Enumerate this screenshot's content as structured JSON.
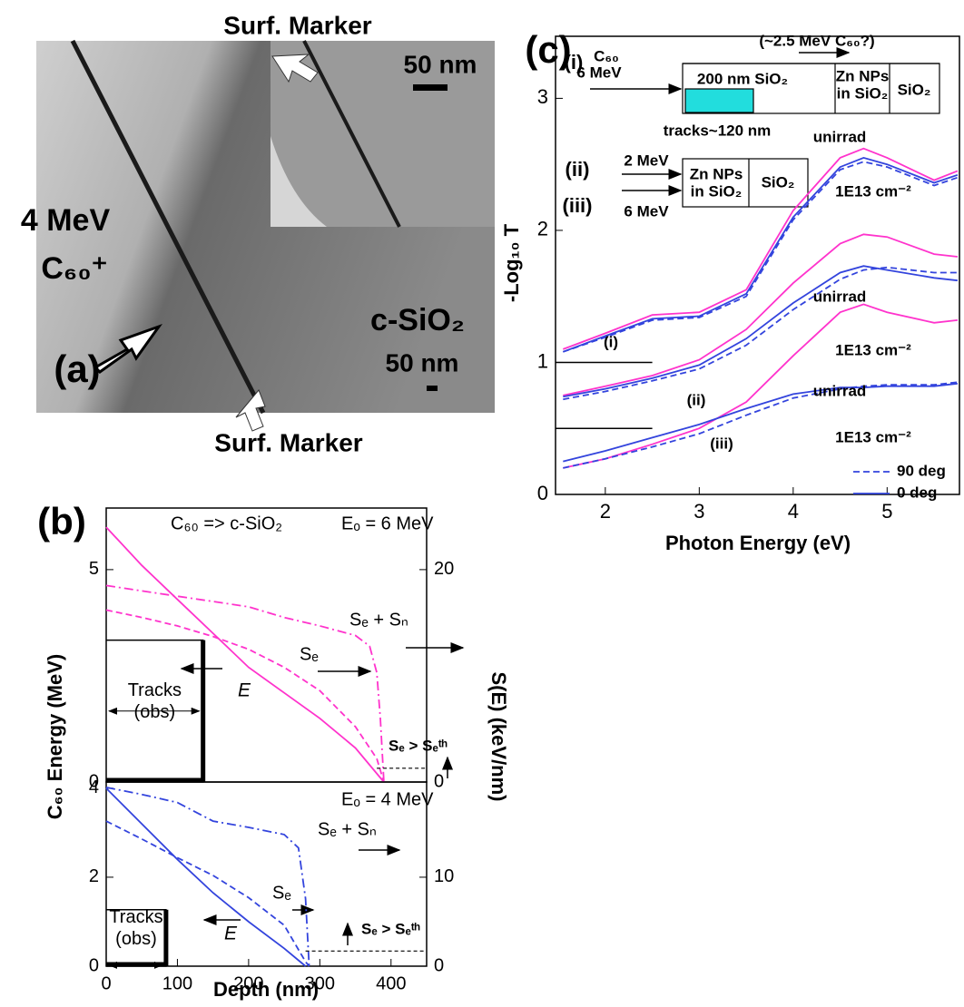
{
  "panel_a": {
    "label": "(a)",
    "beam_energy": "4 MeV",
    "ion": "C₆₀⁺",
    "substrate": "c-SiO₂",
    "marker_top": "Surf. Marker",
    "marker_bottom": "Surf. Marker",
    "scale_inset": "50 nm",
    "scale_main": "50 nm"
  },
  "chart_data": [
    {
      "type": "line",
      "panel_label": "(b)",
      "ylabel": "C₆₀ Energy  (MeV)",
      "y2label": "S(E)  (keV/nm)",
      "annotations": {
        "system": "C₆₀ => c-SiO₂",
        "energy": "Eₒ = 6 MeV",
        "se_sn": "Sₑ + Sₙ",
        "se": "Sₑ",
        "e": "E",
        "threshold": "Sₑ > Sₑᵗʰ"
      },
      "xlim": [
        0,
        450
      ],
      "ylim": [
        0,
        6.45
      ],
      "yticks": [
        0,
        5
      ],
      "y2lim": [
        0,
        25.8
      ],
      "y2ticks": [
        0,
        20
      ],
      "tracks": {
        "depth": 136,
        "height": 3.34,
        "label": [
          "Tracks",
          "(obs)"
        ]
      },
      "series": [
        {
          "color": "#ff33cc",
          "style": "solid",
          "x": [
            0,
            50,
            100,
            150,
            200,
            250,
            300,
            350,
            390
          ],
          "values": [
            6.0,
            5.1,
            4.3,
            3.5,
            2.7,
            2.1,
            1.5,
            0.8,
            0
          ]
        },
        {
          "color": "#ff33cc",
          "style": "dashdot",
          "axis": "y2",
          "x": [
            0,
            50,
            100,
            150,
            200,
            250,
            300,
            350,
            370,
            380,
            385,
            390
          ],
          "values": [
            18.5,
            18.0,
            17.5,
            17.0,
            16.5,
            15.5,
            14.7,
            13.8,
            12.8,
            10.3,
            6,
            0
          ]
        },
        {
          "color": "#ff33cc",
          "style": "dashed",
          "axis": "y2",
          "x": [
            0,
            50,
            100,
            150,
            200,
            250,
            300,
            350,
            380,
            390
          ],
          "values": [
            16.2,
            15.5,
            14.7,
            13.7,
            12.5,
            10.8,
            8.6,
            5.2,
            2.2,
            0
          ]
        },
        {
          "color": "#000000",
          "style": "thin-dashed",
          "axis": "y2",
          "x": [
            380,
            450
          ],
          "values": [
            1.3,
            1.3
          ]
        }
      ]
    },
    {
      "type": "line",
      "xlabel": "Depth  (nm)",
      "annotations": {
        "energy": "Eₒ = 4 MeV",
        "se_sn": "Sₑ + Sₙ",
        "se": "Sₑ",
        "e": "E",
        "threshold": "Sₑ > Sₑᵗʰ"
      },
      "xlim": [
        0,
        450
      ],
      "xticks": [
        0,
        100,
        200,
        300,
        400
      ],
      "ylim": [
        0,
        4.14
      ],
      "yticks": [
        0,
        2,
        4
      ],
      "y2lim": [
        0,
        20.7
      ],
      "y2ticks": [
        0,
        10
      ],
      "tracks": {
        "depth": 84,
        "height": 1.27,
        "label": [
          "Tracks",
          "(obs)"
        ]
      },
      "series": [
        {
          "color": "#3344dd",
          "style": "solid",
          "x": [
            0,
            50,
            100,
            150,
            200,
            250,
            280
          ],
          "values": [
            4.0,
            3.2,
            2.4,
            1.65,
            1.0,
            0.4,
            0
          ]
        },
        {
          "color": "#3344dd",
          "style": "dashdot",
          "axis": "y2",
          "x": [
            0,
            50,
            100,
            150,
            200,
            250,
            270,
            280,
            285
          ],
          "values": [
            20.1,
            19.3,
            18.4,
            16.3,
            15.6,
            14.8,
            13.3,
            7.6,
            0
          ]
        },
        {
          "color": "#3344dd",
          "style": "dashed",
          "axis": "y2",
          "x": [
            0,
            50,
            100,
            150,
            200,
            250,
            280,
            285
          ],
          "values": [
            16.3,
            14.3,
            12.2,
            10.2,
            7.7,
            4.6,
            0.5,
            0
          ]
        },
        {
          "color": "#000000",
          "style": "thin-dashed",
          "axis": "y2",
          "x": [
            280,
            450
          ],
          "values": [
            1.7,
            1.7
          ]
        }
      ]
    },
    {
      "type": "line",
      "panel_label": "(c)",
      "xlabel": "Photon Energy (eV)",
      "ylabel": "-Log₁₀ T",
      "xlim": [
        1.47,
        5.77
      ],
      "xticks": [
        2,
        3,
        4,
        5
      ],
      "ylim": [
        0,
        3.47
      ],
      "yticks": [
        0,
        1,
        2,
        3
      ],
      "baselines": [
        1,
        0.5
      ],
      "baseline_end": 2.5,
      "curve_labels": [
        "(i)",
        "(ii)",
        "(iii)"
      ],
      "dose_labels": [
        "1E13 cm⁻²",
        "1E13 cm⁻²",
        "1E13 cm⁻²"
      ],
      "x": [
        1.55,
        2,
        2.5,
        3,
        3.5,
        4,
        4.5,
        4.75,
        5,
        5.5,
        5.75
      ],
      "series": [
        {
          "name": "unirrad",
          "color": "#ff33cc",
          "style": "solid",
          "values": [
            1.1,
            1.22,
            1.36,
            1.38,
            1.55,
            2.15,
            2.55,
            2.62,
            2.55,
            2.38,
            2.45
          ]
        },
        {
          "name": "0 deg",
          "color": "#3344dd",
          "style": "solid",
          "values": [
            1.08,
            1.2,
            1.33,
            1.35,
            1.52,
            2.1,
            2.48,
            2.55,
            2.5,
            2.36,
            2.42
          ]
        },
        {
          "name": "90 deg",
          "color": "#3344dd",
          "style": "dashed",
          "values": [
            1.08,
            1.19,
            1.32,
            1.34,
            1.5,
            2.08,
            2.46,
            2.52,
            2.48,
            2.34,
            2.4
          ]
        },
        {
          "name": "unirrad",
          "color": "#ff33cc",
          "style": "solid",
          "values": [
            0.75,
            0.82,
            0.9,
            1.02,
            1.25,
            1.6,
            1.9,
            1.97,
            1.95,
            1.82,
            1.8
          ]
        },
        {
          "name": "0 deg",
          "color": "#3344dd",
          "style": "solid",
          "values": [
            0.74,
            0.8,
            0.88,
            0.98,
            1.18,
            1.45,
            1.68,
            1.73,
            1.7,
            1.64,
            1.62
          ]
        },
        {
          "name": "90 deg",
          "color": "#3344dd",
          "style": "dashed",
          "values": [
            0.72,
            0.78,
            0.86,
            0.95,
            1.13,
            1.4,
            1.63,
            1.7,
            1.72,
            1.68,
            1.68
          ]
        },
        {
          "name": "unirrad",
          "color": "#ff33cc",
          "style": "solid",
          "values": [
            0.2,
            0.27,
            0.38,
            0.5,
            0.7,
            1.05,
            1.38,
            1.44,
            1.38,
            1.3,
            1.32
          ]
        },
        {
          "name": "0 deg",
          "color": "#3344dd",
          "style": "solid",
          "values": [
            0.25,
            0.33,
            0.43,
            0.53,
            0.65,
            0.76,
            0.81,
            0.81,
            0.82,
            0.82,
            0.84
          ]
        },
        {
          "name": "90 deg",
          "color": "#3344dd",
          "style": "dashed",
          "values": [
            0.2,
            0.27,
            0.36,
            0.46,
            0.6,
            0.73,
            0.8,
            0.82,
            0.83,
            0.83,
            0.85
          ]
        }
      ],
      "inset": {
        "label_i": "(i)",
        "ion": "C₆₀",
        "energy_i": "6 MeV",
        "question": "(~2.5 MeV C₆₀?)",
        "layer1": "200 nm SiO₂",
        "layer2": [
          "Zn NPs",
          "in SiO₂"
        ],
        "layer3": "SiO₂",
        "tracks": "tracks~120 nm",
        "label_ii": "(ii)",
        "energy_ii": "2 MeV",
        "label_iii": "(iii)",
        "energy_iii": "6 MeV",
        "layer2b": [
          "Zn NPs",
          "in SiO₂"
        ],
        "layer3b": "SiO₂"
      }
    }
  ]
}
